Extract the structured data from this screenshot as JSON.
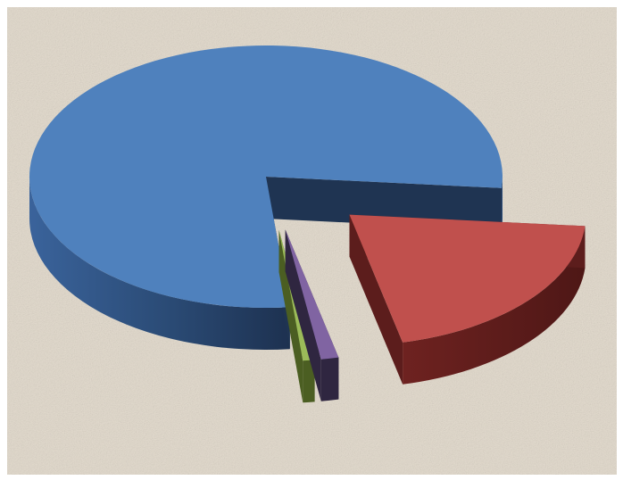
{
  "chart_data": {
    "type": "pie",
    "style": "3d-exploded",
    "title": "",
    "legend": "none",
    "data_labels": "none",
    "slices": [
      {
        "value": 78.0,
        "color": "#4f81bd",
        "side_color": "#1f3452"
      },
      {
        "value": 20.0,
        "color": "#c0504d",
        "side_color": "#5c1d1c"
      },
      {
        "value": 1.2,
        "color": "#8064a2",
        "side_color": "#2f2640"
      },
      {
        "value": 0.8,
        "color": "#9bbb59",
        "side_color": "#4b5e22"
      }
    ]
  },
  "background": {
    "color": "#e4dccf",
    "texture": "paper-speckle"
  }
}
